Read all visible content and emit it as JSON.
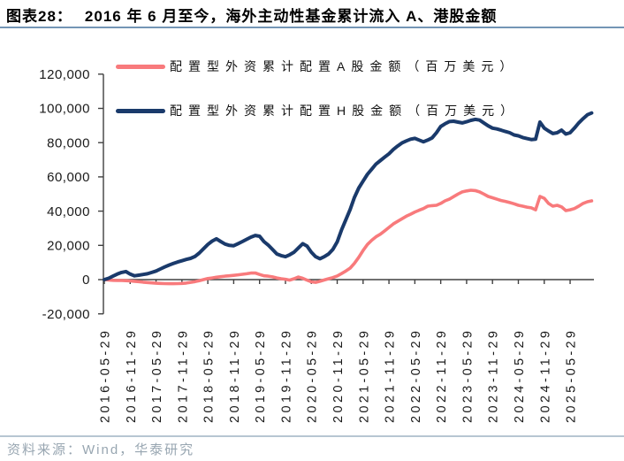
{
  "header": {
    "label": "图表28：",
    "title": "2016 年 6 月至今，海外主动性基金累计流入 A、港股金额"
  },
  "footer": {
    "source": "资料来源：Wind，华泰研究"
  },
  "colors": {
    "a_share": "#F87A7C",
    "h_share": "#1A3A6B",
    "title_rule": "#7495B5",
    "footer_rule": "#B7C6D2",
    "footer_text": "#98A6B1",
    "axis": "#404040",
    "tick_text": "#1A1A1A"
  },
  "chart_data": {
    "type": "line",
    "title": "2016 年 6 月至今，海外主动性基金累计流入 A、港股金额",
    "unit": "百万美元",
    "x_start": "2016-06",
    "x_interval": "monthly",
    "x_tick_labels": [
      "2016-05-29",
      "2016-11-29",
      "2017-05-29",
      "2017-11-29",
      "2018-05-29",
      "2018-11-29",
      "2019-05-29",
      "2019-11-29",
      "2020-05-29",
      "2020-11-29",
      "2021-05-29",
      "2021-11-29",
      "2022-05-29",
      "2022-11-29",
      "2023-05-29",
      "2023-11-29",
      "2024-05-29",
      "2024-11-29",
      "2025-05-29"
    ],
    "y_ticks": [
      120000,
      100000,
      80000,
      60000,
      40000,
      20000,
      0,
      -20000
    ],
    "y_tick_labels": [
      "120,000",
      "100,000",
      "80,000",
      "60,000",
      "40,000",
      "20,000",
      "0",
      "-20,000"
    ],
    "ylim": [
      -20000,
      120000
    ],
    "grid": false,
    "legend_position": "top-left",
    "series": [
      {
        "name": "配置型外资累计配置A股金额（百万美元）",
        "color_key": "a_share",
        "values": [
          0,
          -200,
          -400,
          -500,
          -500,
          -600,
          -800,
          -1000,
          -1200,
          -1500,
          -1700,
          -1900,
          -2100,
          -2200,
          -2300,
          -2400,
          -2400,
          -2300,
          -2200,
          -2000,
          -1600,
          -1200,
          -600,
          0,
          600,
          1000,
          1400,
          1700,
          2000,
          2200,
          2500,
          2800,
          3100,
          3400,
          3800,
          3900,
          3000,
          2200,
          2000,
          1600,
          1000,
          500,
          200,
          -300,
          500,
          1500,
          800,
          -300,
          -1300,
          -1600,
          -1000,
          -200,
          500,
          1200,
          2100,
          3500,
          5000,
          6700,
          9500,
          13000,
          17000,
          20500,
          23000,
          25000,
          26500,
          28500,
          30500,
          32500,
          34000,
          35500,
          37000,
          38200,
          39500,
          40500,
          41500,
          42900,
          43200,
          43400,
          44500,
          46000,
          47000,
          48500,
          50000,
          51200,
          51800,
          52200,
          52000,
          51200,
          50000,
          48600,
          47800,
          47000,
          46200,
          45700,
          45000,
          44300,
          43400,
          42900,
          42300,
          41900,
          40800,
          48600,
          47500,
          44500,
          42900,
          43400,
          42500,
          40300,
          40800,
          41500,
          42900,
          44500,
          45500,
          46000
        ]
      },
      {
        "name": "配置型外资累计配置H股金额（百万美元）",
        "color_key": "h_share",
        "values": [
          0,
          800,
          2000,
          3200,
          4200,
          4700,
          3200,
          2200,
          2600,
          3000,
          3400,
          4200,
          5000,
          6200,
          7400,
          8500,
          9400,
          10300,
          11000,
          11800,
          12400,
          13500,
          15500,
          18000,
          20500,
          22500,
          23800,
          22200,
          20800,
          20000,
          19800,
          21000,
          22200,
          23500,
          24800,
          25800,
          25300,
          22200,
          20200,
          17600,
          15000,
          14000,
          13400,
          14500,
          16000,
          18500,
          21000,
          19600,
          16000,
          13400,
          12200,
          13400,
          15000,
          17600,
          22000,
          29000,
          35000,
          41000,
          48000,
          53500,
          57500,
          61500,
          64500,
          67500,
          69500,
          71500,
          73500,
          76000,
          78000,
          79800,
          81000,
          82000,
          82500,
          81500,
          80500,
          81500,
          82800,
          85800,
          89400,
          91000,
          92300,
          92500,
          92000,
          91500,
          92200,
          93000,
          93600,
          93200,
          91500,
          89800,
          88500,
          88000,
          87300,
          86500,
          85800,
          84500,
          84000,
          83000,
          82400,
          81800,
          82000,
          92000,
          88500,
          86800,
          85300,
          85800,
          87300,
          85000,
          85800,
          88500,
          91500,
          94000,
          96300,
          97300
        ]
      }
    ]
  }
}
